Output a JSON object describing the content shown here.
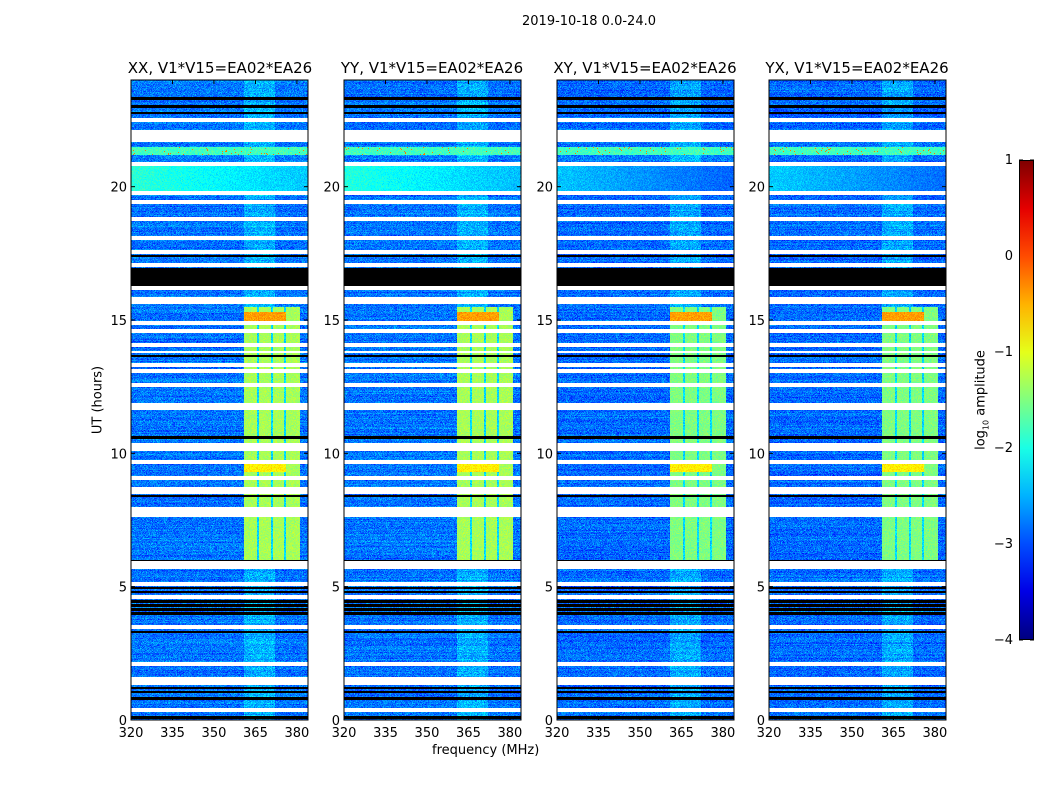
{
  "chart_data": {
    "type": "heatmap",
    "title": "2019-10-18 0.0-24.0",
    "xlabel": "frequency (MHz)",
    "ylabel": "UT (hours)",
    "xlim": [
      320,
      384
    ],
    "ylim": [
      0,
      24
    ],
    "xticks": [
      320,
      335,
      350,
      365,
      380
    ],
    "yticks": [
      0,
      5,
      10,
      15,
      20
    ],
    "colormap": "jet",
    "colorbar": {
      "label_main": "log",
      "label_sub": "10",
      "label_rest": " amplitude",
      "range": [
        -4,
        1
      ],
      "ticks": [
        1,
        0,
        -1,
        -2,
        -3,
        -4
      ],
      "tick_labels": [
        "1",
        "0",
        "−1",
        "−2",
        "−3",
        "−4"
      ]
    },
    "panels": [
      {
        "title": "XX, V1*V15=EA02*EA26",
        "background_level": -2.8,
        "band_level": -1.3,
        "band20_level": -1.9
      },
      {
        "title": "YY, V1*V15=EA02*EA26",
        "background_level": -2.8,
        "band_level": -1.3,
        "band20_level": -1.95
      },
      {
        "title": "XY, V1*V15=EA02*EA26",
        "background_level": -2.85,
        "band_level": -1.5,
        "band20_level": -2.4
      },
      {
        "title": "YX, V1*V15=EA02*EA26",
        "background_level": -2.85,
        "band_level": -1.5,
        "band20_level": -2.35
      }
    ],
    "features": {
      "rfi_band_mhz": [
        361,
        381
      ],
      "rfi_band_hours": [
        5.8,
        15.5
      ],
      "rfi_band_gaps_mhz": [
        366,
        371,
        375.7
      ],
      "rfi_peak_hours": [
        [
          14.9,
          15.3,
          -0.4
        ],
        [
          9.3,
          9.6,
          -0.8
        ]
      ],
      "broadband_hours": [
        19.7,
        20.8
      ],
      "rfi_line_hours": [
        21.2,
        21.5
      ],
      "flagged_white_hours": [
        22.5,
        22.05,
        21.9,
        21.75,
        20.85,
        19.76,
        19.42,
        18.8,
        17.55,
        17.06,
        16.2,
        15.8,
        14.9,
        14.6,
        14.06,
        13.3,
        13.1,
        12.56,
        11.8,
        11.7,
        10.3,
        10.15,
        9.67,
        9.07,
        8.66,
        8.55,
        5.9,
        5.75,
        5.1,
        4.6,
        3.5,
        2.1,
        1.55,
        1.4,
        0.37
      ],
      "flagged_white_ranges": [
        [
          7.6,
          8.0
        ],
        [
          18.0,
          18.15
        ],
        [
          15.6,
          15.7
        ],
        [
          13.75,
          13.85
        ]
      ],
      "flagged_black_hours": [
        23.3,
        23.0,
        22.76,
        17.4,
        13.65,
        10.6,
        8.4,
        5.95,
        4.95,
        4.8,
        4.65,
        4.45,
        4.3,
        4.15,
        4.0,
        3.3,
        1.2,
        1.05,
        0.8,
        0.1
      ],
      "flagged_black_ranges": [
        [
          16.2,
          16.95
        ]
      ]
    }
  }
}
